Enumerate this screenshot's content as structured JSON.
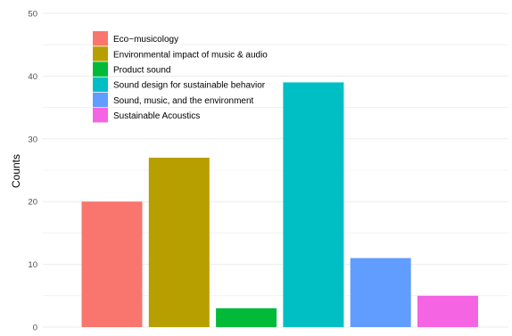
{
  "chart_data": {
    "type": "bar",
    "title": "",
    "xlabel": "",
    "ylabel": "Counts",
    "ylim": [
      0,
      50
    ],
    "yticks": [
      0,
      10,
      20,
      30,
      40,
      50
    ],
    "grid": true,
    "legend_position": "top-left",
    "categories": [
      "Eco−musicology",
      "Environmental impact of music & audio",
      "Product sound",
      "Sound design for sustainable behavior",
      "Sound, music, and the environment",
      "Sustainable Acoustics"
    ],
    "values": [
      20,
      27,
      3,
      39,
      11,
      5
    ],
    "colors": [
      "#F8766D",
      "#B79F00",
      "#00BA38",
      "#00BFC4",
      "#619CFF",
      "#F564E3"
    ],
    "gridline_color": "#ebebeb",
    "tick_label_color": "#4d4d4d"
  }
}
